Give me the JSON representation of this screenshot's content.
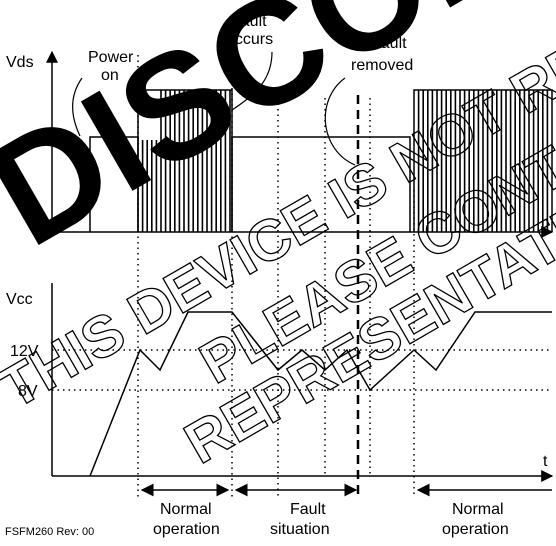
{
  "signals": {
    "vds": "Vds",
    "vcc": "Vcc",
    "time": "t"
  },
  "levels": {
    "high": "12V",
    "low": "8V"
  },
  "events": {
    "power_on_line1": "Power",
    "power_on_line2": "on",
    "fault_occurs_line1": "Fault",
    "fault_occurs_line2": "occurs",
    "fault_removed_line1": "Fault",
    "fault_removed_line2": "removed"
  },
  "phases": [
    {
      "line1": "Normal",
      "line2": "operation"
    },
    {
      "line1": "Fault",
      "line2": "situation"
    },
    {
      "line1": "Normal",
      "line2": "operation"
    }
  ],
  "footer": "FSFM260 Rev: 00",
  "watermark": {
    "big": "DISCONTINUED",
    "line1": "THIS DEVICE IS NOT RECOMMENDED",
    "line2": "PLEASE CONTACT",
    "line3": "REPRESENTATIVE"
  },
  "colors": {
    "ink": "#000000",
    "watermark_big": "#000000",
    "watermark_outline": "#000000"
  }
}
